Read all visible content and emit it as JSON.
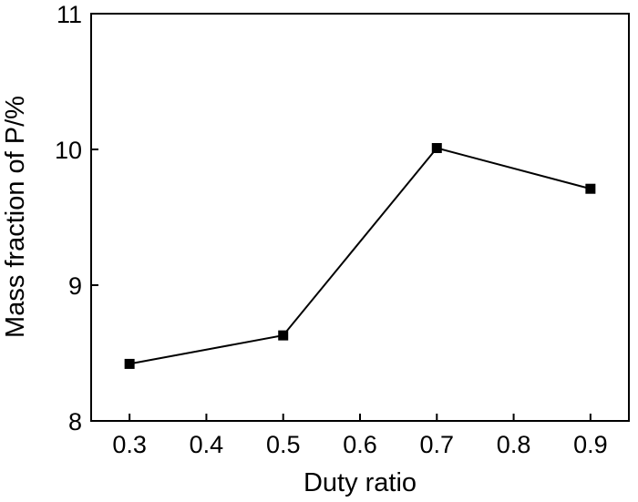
{
  "chart_data": {
    "type": "line",
    "title": "",
    "xlabel": "Duty ratio",
    "ylabel": "Mass fraction of P/%",
    "x": [
      0.3,
      0.5,
      0.7,
      0.9
    ],
    "series": [
      {
        "values": [
          8.42,
          8.63,
          10.01,
          9.71
        ]
      }
    ],
    "xlim": [
      0.25,
      0.95
    ],
    "ylim": [
      8,
      11
    ],
    "xticks": [
      0.3,
      0.4,
      0.5,
      0.6,
      0.7,
      0.8,
      0.9
    ],
    "xtick_labels": [
      "0.3",
      "0.4",
      "0.5",
      "0.6",
      "0.7",
      "0.8",
      "0.9"
    ],
    "yticks": [
      8,
      9,
      10,
      11
    ],
    "ytick_labels": [
      "8",
      "9",
      "10",
      "11"
    ],
    "grid": false,
    "legend": "none",
    "marker": "square",
    "colors": {
      "line": "#000000",
      "marker": "#000000",
      "axis": "#000000"
    }
  }
}
